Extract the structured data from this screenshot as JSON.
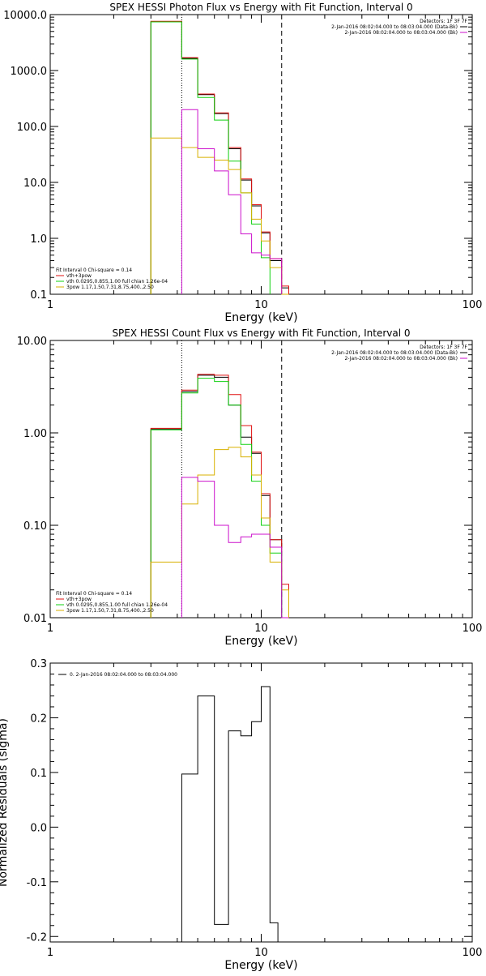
{
  "colors": {
    "black": "#000000",
    "red": "#e01010",
    "green": "#10d010",
    "magenta": "#cc10cc",
    "yellow": "#d8b000"
  },
  "chart_data": [
    {
      "type": "line",
      "title": "SPEX HESSI Photon Flux vs Energy with Fit Function, Interval 0",
      "xlabel": "Energy (keV)",
      "ylabel": "",
      "x_scale": "log",
      "y_scale": "log",
      "xlim": [
        1,
        100
      ],
      "ylim": [
        0.1,
        10000
      ],
      "x_ticks": [
        1,
        10,
        100
      ],
      "x_tick_labels": [
        "1",
        "10",
        "100"
      ],
      "y_ticks": [
        0.1,
        1,
        10,
        100,
        1000,
        10000
      ],
      "y_tick_labels": [
        "0.1",
        "1.0",
        "10.0",
        "100.0",
        "1000.0",
        "10000.0"
      ],
      "vlines": [
        {
          "x": 4.2,
          "style": "dotted"
        },
        {
          "x": 12.5,
          "style": "dashed"
        }
      ],
      "legend_top": {
        "header": "Detectors: 1F 3F 7F",
        "items": [
          {
            "text": "2-Jan-2016 08:02:04.000 to 08:03:04.000 (Data-Bk)",
            "color": "#000000"
          },
          {
            "text": "2-Jan-2016 08:02:04.000 to 08:03:04.000 (Bk)",
            "color": "#cc10cc"
          }
        ]
      },
      "legend_bottom": {
        "header": "Fit Interval 0   Chi-square = 0.14",
        "items": [
          {
            "text": "vth+3pow",
            "color": "#e01010"
          },
          {
            "text": "vth 0.0295,0.855,1.00  full chian 1.26e-04",
            "color": "#10d010"
          },
          {
            "text": "3pow 1.17,1.50,7.31,8.75,400.,2.50",
            "color": "#d8b000"
          }
        ]
      },
      "x_edges": [
        3.0,
        4.2,
        5.0,
        6.0,
        7.0,
        8.0,
        9.0,
        10.0,
        11.0,
        12.5,
        13.5
      ],
      "series": [
        {
          "label": "data-bk",
          "color": "#000000",
          "values": [
            7500,
            1650,
            370,
            170,
            40,
            11,
            3.8,
            1.25,
            0.4,
            0.13
          ]
        },
        {
          "label": "vth+3pow",
          "color": "#e01010",
          "values": [
            7600,
            1700,
            380,
            175,
            42,
            11.5,
            4.0,
            1.3,
            0.43,
            0.14
          ]
        },
        {
          "label": "vth",
          "color": "#10d010",
          "values": [
            7400,
            1600,
            330,
            130,
            24,
            6.5,
            1.8,
            0.45,
            null,
            null
          ]
        },
        {
          "label": "3pow",
          "color": "#d8b000",
          "values": [
            62,
            42,
            28,
            25,
            17,
            6.5,
            2.2,
            0.9,
            0.3,
            0.1
          ]
        },
        {
          "label": "bk",
          "color": "#cc10cc",
          "values": [
            null,
            200,
            40,
            16,
            6,
            1.2,
            0.55,
            0.5,
            0.43,
            null
          ]
        }
      ]
    },
    {
      "type": "line",
      "title": "SPEX HESSI Count Flux vs Energy with Fit Function, Interval 0",
      "xlabel": "Energy (keV)",
      "ylabel": "",
      "x_scale": "log",
      "y_scale": "log",
      "xlim": [
        1,
        100
      ],
      "ylim": [
        0.01,
        10
      ],
      "x_ticks": [
        1,
        10,
        100
      ],
      "x_tick_labels": [
        "1",
        "10",
        "100"
      ],
      "y_ticks": [
        0.01,
        0.1,
        1,
        10
      ],
      "y_tick_labels": [
        "0.01",
        "0.10",
        "1.00",
        "10.00"
      ],
      "vlines": [
        {
          "x": 4.2,
          "style": "dotted"
        },
        {
          "x": 12.5,
          "style": "dashed"
        }
      ],
      "legend_top": {
        "header": "Detectors: 1F 3F 7F",
        "items": [
          {
            "text": "2-Jan-2016 08:02:04.000 to 08:03:04.000 (Data-Bk)",
            "color": "#000000"
          },
          {
            "text": "2-Jan-2016 08:02:04.000 to 08:03:04.000 (Bk)",
            "color": "#cc10cc"
          }
        ]
      },
      "legend_bottom": {
        "header": "Fit Interval 0   Chi-square = 0.14",
        "items": [
          {
            "text": "vth+3pow",
            "color": "#e01010"
          },
          {
            "text": "vth 0.0295,0.855,1.00  full chian 1.26e-04",
            "color": "#10d010"
          },
          {
            "text": "3pow 1.17,1.50,7.31,8.75,400.,2.50",
            "color": "#d8b000"
          }
        ]
      },
      "x_edges": [
        3.0,
        4.2,
        5.0,
        6.0,
        7.0,
        8.0,
        9.0,
        10.0,
        11.0,
        12.5,
        13.5
      ],
      "series": [
        {
          "label": "data-bk",
          "color": "#000000",
          "values": [
            1.1,
            2.8,
            4.2,
            4.0,
            2.0,
            0.9,
            0.6,
            0.21,
            0.07,
            null
          ]
        },
        {
          "label": "vth+3pow",
          "color": "#e01010",
          "values": [
            1.12,
            2.9,
            4.3,
            4.2,
            2.6,
            1.2,
            0.62,
            0.22,
            0.07,
            0.023
          ]
        },
        {
          "label": "vth",
          "color": "#10d010",
          "values": [
            1.08,
            2.7,
            3.9,
            3.6,
            2.0,
            0.75,
            0.3,
            0.1,
            0.05,
            null
          ]
        },
        {
          "label": "3pow",
          "color": "#d8b000",
          "values": [
            0.04,
            0.17,
            0.35,
            0.66,
            0.7,
            0.55,
            0.35,
            0.12,
            0.04,
            0.02
          ]
        },
        {
          "label": "bk",
          "color": "#cc10cc",
          "values": [
            null,
            0.33,
            0.3,
            0.1,
            0.065,
            0.075,
            0.08,
            0.08,
            0.058,
            0.01
          ]
        }
      ]
    },
    {
      "type": "line",
      "title": "",
      "xlabel": "Energy (keV)",
      "ylabel": "Normalized Residuals (sigma)",
      "x_scale": "log",
      "y_scale": "linear",
      "xlim": [
        1,
        100
      ],
      "ylim": [
        -0.21,
        0.3
      ],
      "x_ticks": [
        1,
        10,
        100
      ],
      "x_tick_labels": [
        "1",
        "10",
        "100"
      ],
      "y_ticks": [
        -0.2,
        -0.1,
        0.0,
        0.1,
        0.2,
        0.3
      ],
      "y_tick_labels": [
        "-0.2",
        "-0.1",
        "0.0",
        "0.1",
        "0.2",
        "0.3"
      ],
      "legend_top": {
        "header": "",
        "items": [
          {
            "text": "0.  2-Jan-2016 08:02:04.000 to 08:03:04.000",
            "color": "#000000"
          }
        ]
      },
      "x_edges": [
        4.2,
        5.0,
        6.0,
        7.0,
        8.0,
        9.0,
        10.0,
        11.0,
        12.0
      ],
      "series": [
        {
          "label": "residuals",
          "color": "#000000",
          "values": [
            0.097,
            0.24,
            -0.178,
            0.176,
            0.167,
            0.193,
            0.257,
            -0.175
          ]
        }
      ]
    }
  ]
}
